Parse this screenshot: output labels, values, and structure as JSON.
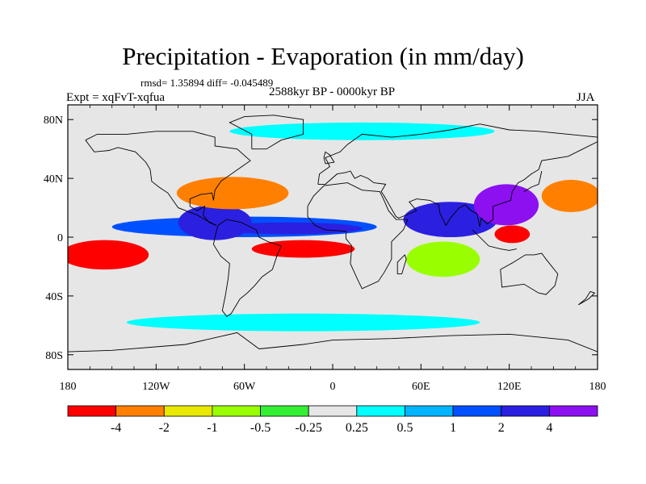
{
  "chart_data": {
    "type": "heatmap",
    "title": "Precipitation - Evaporation (in mm/day)",
    "stats": "rmsd= 1.35894 diff= -0.045489",
    "experiment": "Expt = xqFvT-xqfua",
    "period": "2588kyr BP - 0000kyr BP",
    "season": "JJA",
    "x_axis": {
      "range": [
        -180,
        180
      ],
      "ticks": [
        {
          "value": -180,
          "label": "180"
        },
        {
          "value": -120,
          "label": "120W"
        },
        {
          "value": -60,
          "label": "60W"
        },
        {
          "value": 0,
          "label": "0"
        },
        {
          "value": 60,
          "label": "60E"
        },
        {
          "value": 120,
          "label": "120E"
        },
        {
          "value": 180,
          "label": "180"
        }
      ]
    },
    "y_axis": {
      "range": [
        -90,
        90
      ],
      "ticks": [
        {
          "value": 80,
          "label": "80N"
        },
        {
          "value": 40,
          "label": "40N"
        },
        {
          "value": 0,
          "label": "0"
        },
        {
          "value": -40,
          "label": "40S"
        },
        {
          "value": -80,
          "label": "80S"
        }
      ]
    },
    "colorbar": {
      "colors": [
        "#ff0000",
        "#ff8000",
        "#e8e800",
        "#99ff00",
        "#33ee33",
        "#e6e6e6",
        "#00ffff",
        "#00b4ff",
        "#0050ff",
        "#2b20e0",
        "#8c10f0"
      ],
      "boundaries": [
        "-4",
        "-2",
        "-1",
        "-0.5",
        "-0.25",
        "0.25",
        "0.5",
        "1",
        "2",
        "4"
      ]
    },
    "regions": [
      {
        "name": "itcz-atlantic-africa",
        "lon": -60,
        "lat": 7,
        "rlon": 90,
        "rlat": 7,
        "bin": 8
      },
      {
        "name": "itcz-atlantic-core",
        "lon": -30,
        "lat": 6,
        "rlon": 50,
        "rlat": 4,
        "bin": 9
      },
      {
        "name": "south-tropical-atlantic",
        "lon": -20,
        "lat": -8,
        "rlon": 35,
        "rlat": 6,
        "bin": 0
      },
      {
        "name": "central-america-wet",
        "lon": -80,
        "lat": 10,
        "rlon": 25,
        "rlat": 12,
        "bin": 9
      },
      {
        "name": "north-subtropical-atlantic",
        "lon": -68,
        "lat": 30,
        "rlon": 38,
        "rlat": 11,
        "bin": 1
      },
      {
        "name": "east-pacific-dry",
        "lon": -155,
        "lat": -12,
        "rlon": 30,
        "rlat": 10,
        "bin": 0
      },
      {
        "name": "indian-ocean-wet",
        "lon": 80,
        "lat": 12,
        "rlon": 32,
        "rlat": 12,
        "bin": 9
      },
      {
        "name": "west-pacific-wet",
        "lon": 118,
        "lat": 22,
        "rlon": 22,
        "rlat": 14,
        "bin": 10
      },
      {
        "name": "northwest-pacific-dry",
        "lon": 162,
        "lat": 28,
        "rlon": 20,
        "rlat": 11,
        "bin": 1
      },
      {
        "name": "maritime-continent-dry",
        "lon": 122,
        "lat": 2,
        "rlon": 12,
        "rlat": 6,
        "bin": 0
      },
      {
        "name": "south-indian-dry",
        "lon": 75,
        "lat": -15,
        "rlon": 25,
        "rlat": 12,
        "bin": 3
      },
      {
        "name": "southern-ocean-wet",
        "lon": -20,
        "lat": -58,
        "rlon": 120,
        "rlat": 6,
        "bin": 6
      },
      {
        "name": "arctic-wet",
        "lon": 20,
        "lat": 72,
        "rlon": 90,
        "rlat": 6,
        "bin": 6
      }
    ]
  }
}
